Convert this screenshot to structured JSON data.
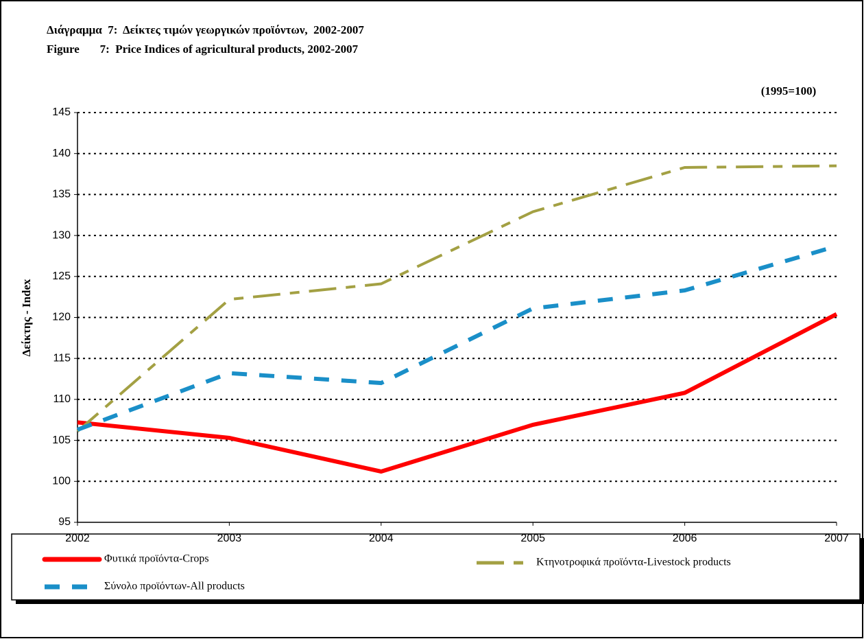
{
  "chart_data": {
    "type": "line",
    "title": "Διάγραμμα  7:  Δείκτες τιμών γεωργικών προϊόντων,  2002-2007",
    "subtitle": "Figure       7:  Price Indices of agricultural products, 2002-2007",
    "annotation": "(1995=100)",
    "y_label": "Δείκτης - Index",
    "categories": [
      "2002",
      "2003",
      "2004",
      "2005",
      "2006",
      "2007"
    ],
    "series": [
      {
        "name": "Φυτικά προϊόντα-Crops",
        "color": "#ff0000",
        "values": [
          107.2,
          105.3,
          101.2,
          106.9,
          110.8,
          120.4
        ]
      },
      {
        "name": "Κτηνοτροφικά προϊόντα-Livestock products",
        "color": "#a3a043",
        "values": [
          106.1,
          122.2,
          124.1,
          132.9,
          138.3,
          138.5
        ]
      },
      {
        "name": "Σύνολο προϊόντων-All products",
        "color": "#1a8fc8",
        "values": [
          106.3,
          113.2,
          112.0,
          121.1,
          123.3,
          128.7
        ]
      }
    ],
    "ylim": [
      95,
      145
    ],
    "yticks": [
      95,
      100,
      105,
      110,
      115,
      120,
      125,
      130,
      135,
      140,
      145
    ],
    "grid": true
  }
}
